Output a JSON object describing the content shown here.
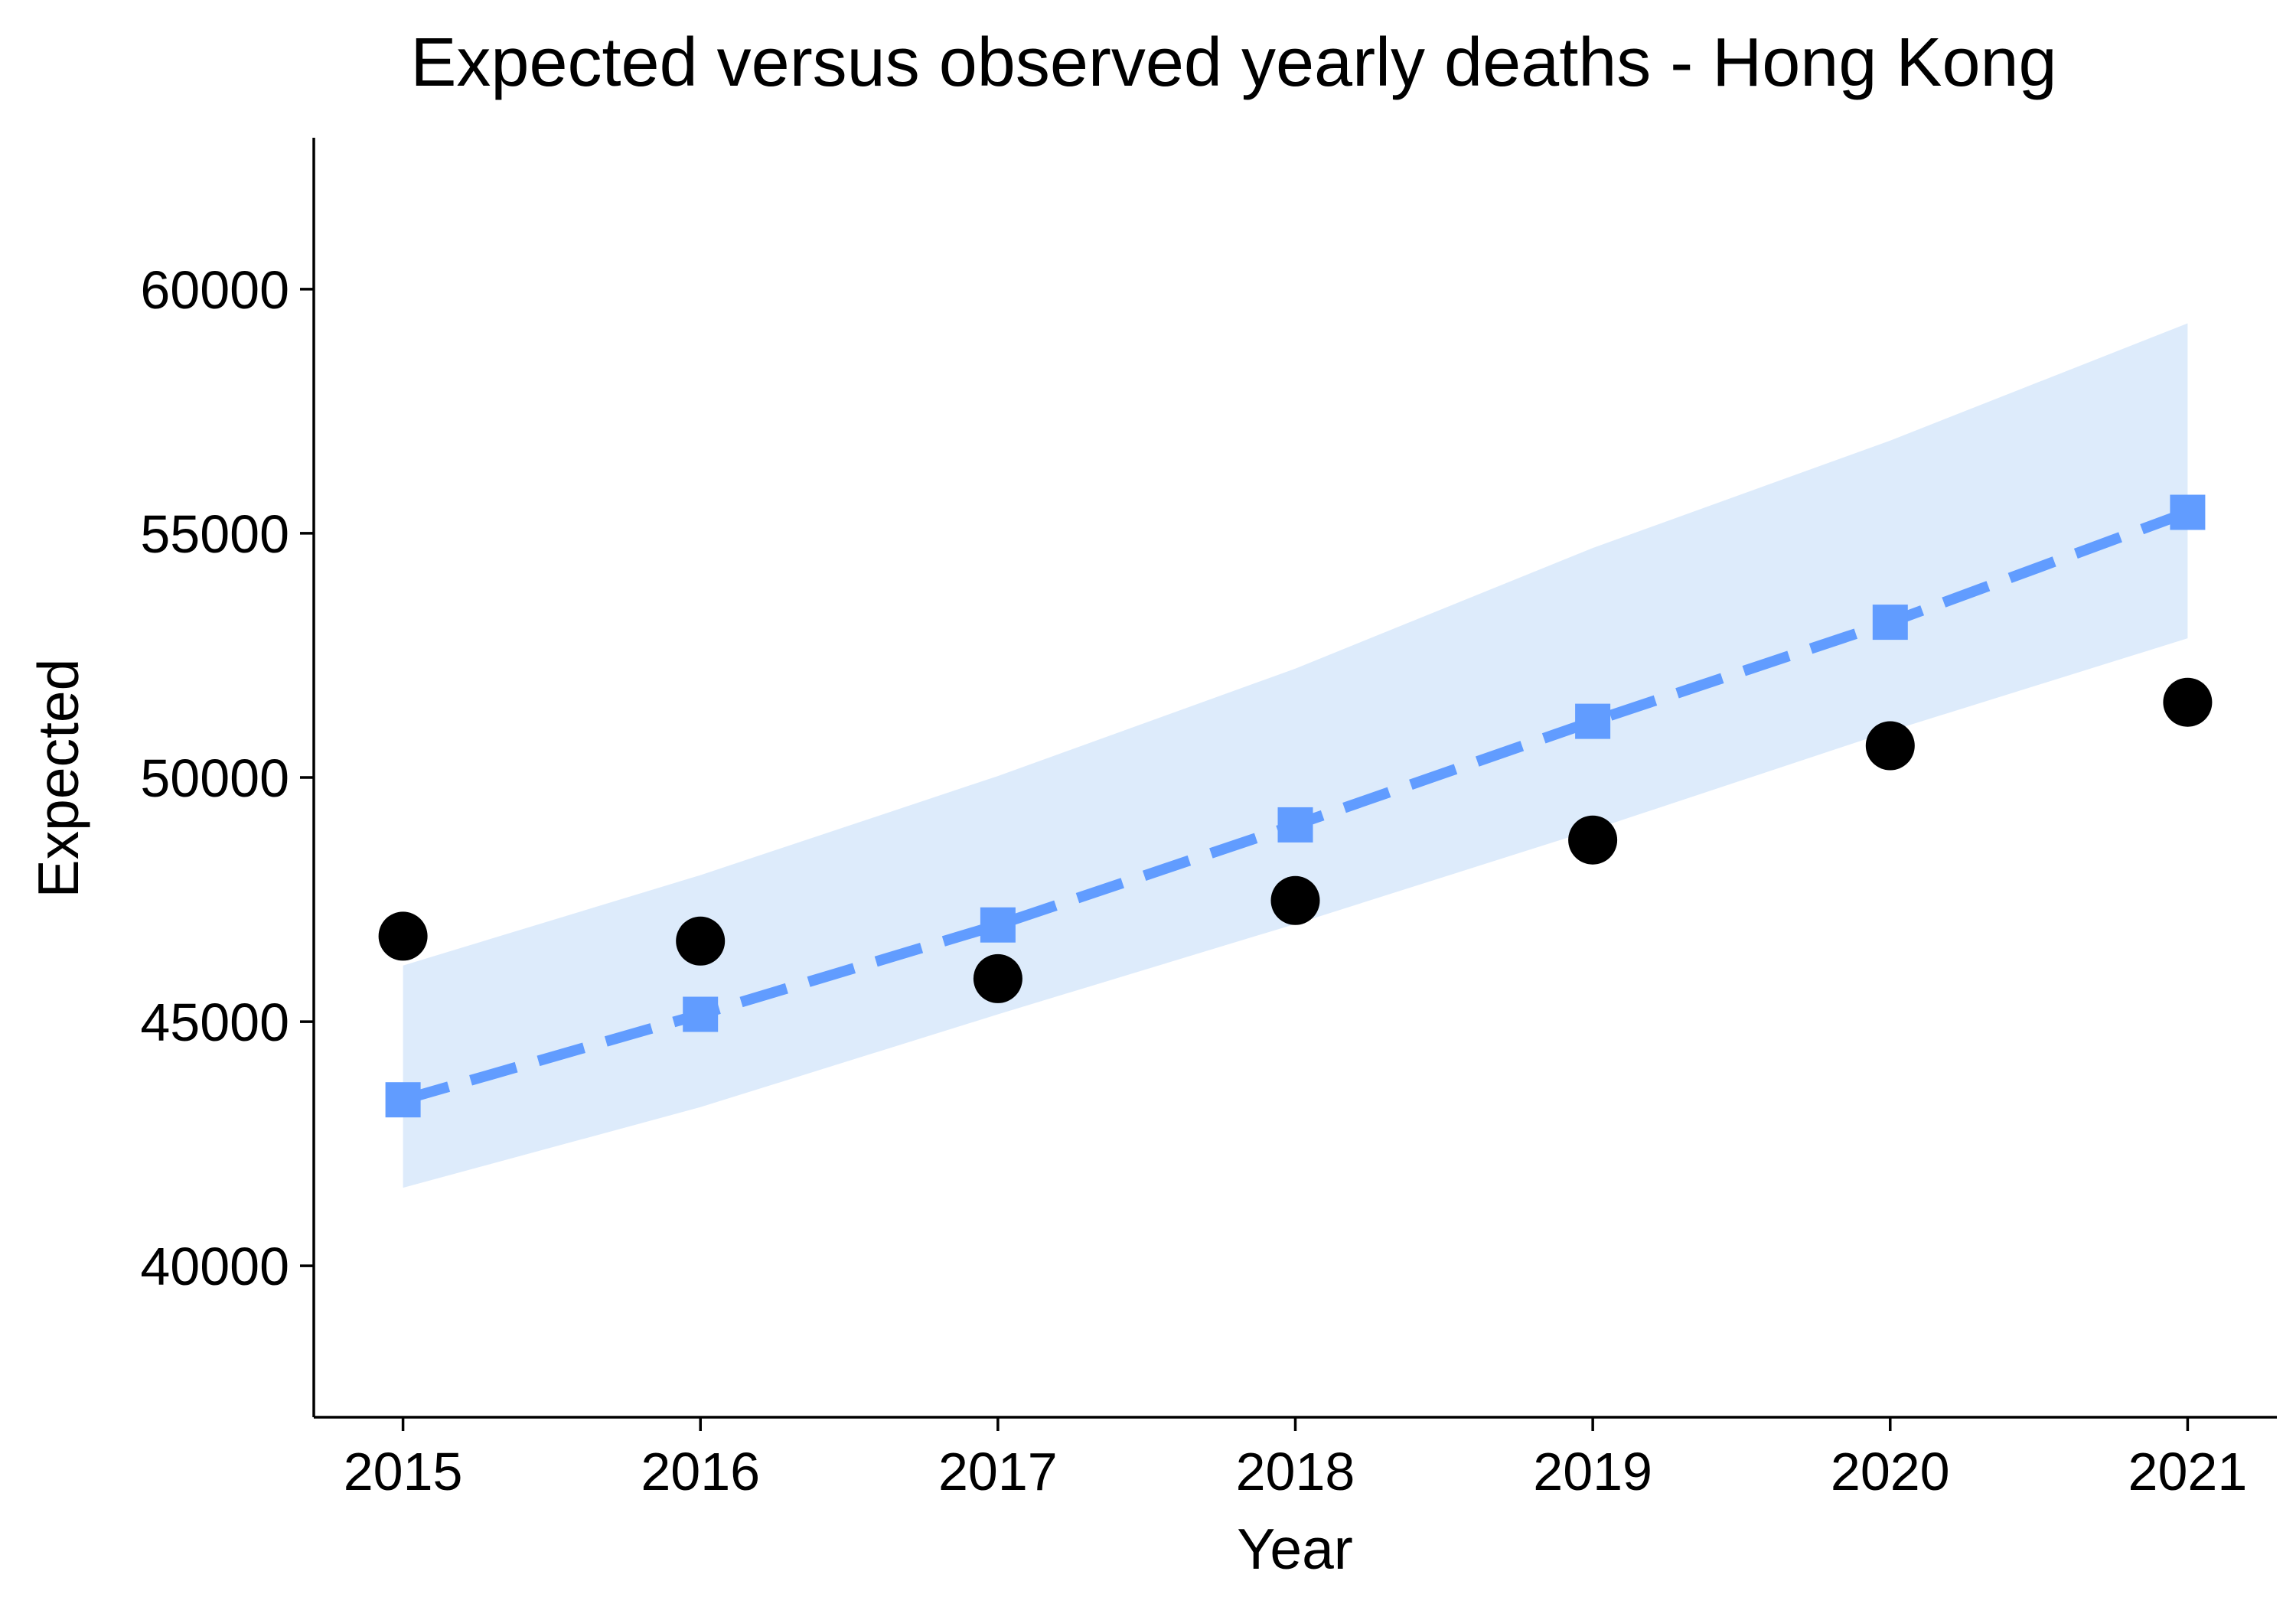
{
  "chart_data": {
    "type": "line",
    "title": "Expected versus observed yearly deaths - Hong Kong",
    "xlabel": "Year",
    "ylabel": "Expected",
    "x": [
      2015,
      2016,
      2017,
      2018,
      2019,
      2020,
      2021
    ],
    "x_tick_labels": [
      "2015",
      "2016",
      "2017",
      "2018",
      "2019",
      "2020",
      "2021"
    ],
    "y_ticks": [
      40000,
      45000,
      50000,
      55000,
      60000
    ],
    "y_tick_labels": [
      "40000",
      "45000",
      "50000",
      "55000",
      "60000"
    ],
    "xlim": [
      2014.7,
      2021.3
    ],
    "ylim": [
      36900,
      63100
    ],
    "grid": false,
    "legend": "none",
    "series": [
      {
        "role": "expected",
        "style": "dashed line with square markers",
        "color": "#619CFF",
        "values": [
          43400,
          45150,
          46980,
          49030,
          51150,
          53180,
          55430
        ]
      },
      {
        "role": "observed",
        "style": "points",
        "color": "#000000",
        "values": [
          46750,
          46650,
          45880,
          47480,
          48720,
          50650,
          51540
        ]
      }
    ],
    "band": {
      "role": "expected interval",
      "color": "#DDEBFB",
      "lower": [
        41600,
        43250,
        45150,
        47000,
        48930,
        50950,
        52850
      ],
      "upper": [
        46150,
        48000,
        50030,
        52230,
        54700,
        56900,
        59300
      ]
    }
  }
}
